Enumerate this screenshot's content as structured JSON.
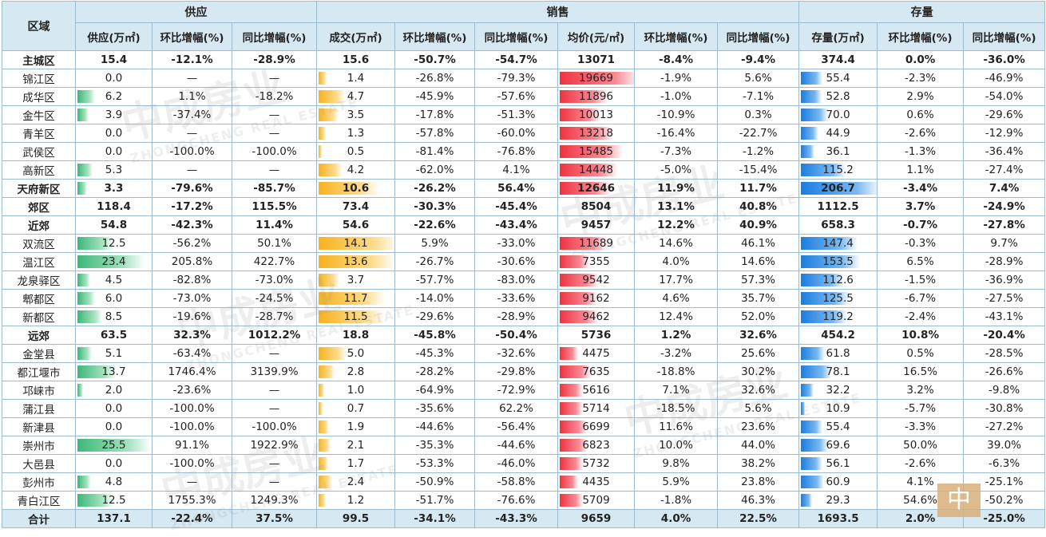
{
  "header": {
    "region": "区域",
    "groups": {
      "supply": "供应",
      "sales": "销售",
      "stock": "存量"
    },
    "columns": [
      "供应(万㎡)",
      "环比增幅(%)",
      "同比增幅(%)",
      "成交(万㎡)",
      "环比增幅(%)",
      "同比增幅(%)",
      "均价(元/㎡)",
      "环比增幅(%)",
      "同比增幅(%)",
      "存量(万㎡)",
      "环比增幅(%)",
      "同比增幅(%)"
    ]
  },
  "rows": [
    {
      "name": "主城区",
      "bold": true,
      "cells": [
        "15.4",
        "-12.1%",
        "-28.9%",
        "15.6",
        "-50.7%",
        "-54.7%",
        "13071",
        "-8.4%",
        "-9.4%",
        "374.4",
        "0.0%",
        "-36.0%"
      ]
    },
    {
      "name": "锦江区",
      "cells": [
        "0.0",
        "—",
        "—",
        "1.4",
        "-26.8%",
        "-79.3%",
        "19669",
        "-1.9%",
        "5.6%",
        "55.4",
        "-2.3%",
        "-46.9%"
      ],
      "bars": {
        "supply": 0.0,
        "deal": 1.4,
        "price": 19669,
        "stock": 55.4
      }
    },
    {
      "name": "成华区",
      "cells": [
        "6.2",
        "1.1%",
        "-18.2%",
        "4.7",
        "-45.9%",
        "-57.6%",
        "11896",
        "-1.0%",
        "-7.1%",
        "52.8",
        "2.9%",
        "-54.0%"
      ],
      "bars": {
        "supply": 6.2,
        "deal": 4.7,
        "price": 11896,
        "stock": 52.8
      }
    },
    {
      "name": "金牛区",
      "cells": [
        "3.9",
        "-37.4%",
        "—",
        "3.5",
        "-17.8%",
        "-51.3%",
        "10013",
        "-10.9%",
        "0.3%",
        "70.0",
        "0.6%",
        "-29.6%"
      ],
      "bars": {
        "supply": 3.9,
        "deal": 3.5,
        "price": 10013,
        "stock": 70.0
      }
    },
    {
      "name": "青羊区",
      "cells": [
        "0.0",
        "—",
        "—",
        "1.3",
        "-57.8%",
        "-60.0%",
        "13218",
        "-16.4%",
        "-22.7%",
        "44.9",
        "-2.6%",
        "-12.9%"
      ],
      "bars": {
        "supply": 0.0,
        "deal": 1.3,
        "price": 13218,
        "stock": 44.9
      }
    },
    {
      "name": "武侯区",
      "cells": [
        "0.0",
        "-100.0%",
        "-100.0%",
        "0.5",
        "-81.4%",
        "-76.8%",
        "15485",
        "-7.3%",
        "-1.2%",
        "36.1",
        "-1.3%",
        "-36.4%"
      ],
      "bars": {
        "supply": 0.0,
        "deal": 0.5,
        "price": 15485,
        "stock": 36.1
      }
    },
    {
      "name": "高新区",
      "cells": [
        "5.3",
        "—",
        "—",
        "4.2",
        "-62.0%",
        "4.1%",
        "14448",
        "-5.0%",
        "-15.4%",
        "115.2",
        "1.1%",
        "-27.4%"
      ],
      "bars": {
        "supply": 5.3,
        "deal": 4.2,
        "price": 14448,
        "stock": 115.2
      }
    },
    {
      "name": "天府新区",
      "bold": true,
      "cells": [
        "3.3",
        "-79.6%",
        "-85.7%",
        "10.6",
        "-26.2%",
        "56.4%",
        "12646",
        "11.9%",
        "11.7%",
        "206.7",
        "-3.4%",
        "7.4%"
      ],
      "bars": {
        "supply": 3.3,
        "deal": 10.6,
        "price": 12646,
        "stock": 206.7
      }
    },
    {
      "name": "郊区",
      "bold": true,
      "cells": [
        "118.4",
        "-17.2%",
        "115.5%",
        "73.4",
        "-30.3%",
        "-45.4%",
        "8504",
        "13.1%",
        "40.8%",
        "1112.5",
        "3.7%",
        "-24.9%"
      ]
    },
    {
      "name": "近郊",
      "bold": true,
      "cells": [
        "54.8",
        "-42.3%",
        "11.4%",
        "54.6",
        "-22.6%",
        "-43.4%",
        "9457",
        "12.2%",
        "40.9%",
        "658.3",
        "-0.7%",
        "-27.8%"
      ]
    },
    {
      "name": "双流区",
      "cells": [
        "12.5",
        "-56.2%",
        "50.1%",
        "14.1",
        "5.9%",
        "-33.0%",
        "11689",
        "14.6%",
        "46.1%",
        "147.4",
        "-0.3%",
        "9.7%"
      ],
      "bars": {
        "supply": 12.5,
        "deal": 14.1,
        "price": 11689,
        "stock": 147.4
      }
    },
    {
      "name": "温江区",
      "cells": [
        "23.4",
        "205.8%",
        "422.7%",
        "13.6",
        "-26.7%",
        "-30.6%",
        "7355",
        "4.0%",
        "14.6%",
        "153.5",
        "6.5%",
        "-28.9%"
      ],
      "bars": {
        "supply": 23.4,
        "deal": 13.6,
        "price": 7355,
        "stock": 153.5
      }
    },
    {
      "name": "龙泉驿区",
      "cells": [
        "4.5",
        "-82.8%",
        "-73.0%",
        "3.7",
        "-57.7%",
        "-83.0%",
        "9542",
        "17.7%",
        "57.3%",
        "112.6",
        "-1.5%",
        "-36.9%"
      ],
      "bars": {
        "supply": 4.5,
        "deal": 3.7,
        "price": 9542,
        "stock": 112.6
      }
    },
    {
      "name": "郫都区",
      "cells": [
        "6.0",
        "-73.0%",
        "-24.5%",
        "11.7",
        "-14.0%",
        "-33.6%",
        "9162",
        "4.6%",
        "35.7%",
        "125.5",
        "-6.7%",
        "-27.5%"
      ],
      "bars": {
        "supply": 6.0,
        "deal": 11.7,
        "price": 9162,
        "stock": 125.5
      }
    },
    {
      "name": "新都区",
      "cells": [
        "8.5",
        "-19.6%",
        "-28.7%",
        "11.5",
        "-29.6%",
        "-28.9%",
        "9462",
        "12.4%",
        "52.0%",
        "119.2",
        "-2.4%",
        "-43.1%"
      ],
      "bars": {
        "supply": 8.5,
        "deal": 11.5,
        "price": 9462,
        "stock": 119.2
      }
    },
    {
      "name": "远郊",
      "bold": true,
      "cells": [
        "63.5",
        "32.3%",
        "1012.2%",
        "18.8",
        "-45.8%",
        "-50.4%",
        "5736",
        "1.2%",
        "32.6%",
        "454.2",
        "10.8%",
        "-20.4%"
      ]
    },
    {
      "name": "金堂县",
      "cells": [
        "5.1",
        "-63.4%",
        "—",
        "5.0",
        "-45.3%",
        "-32.6%",
        "4475",
        "-3.2%",
        "25.6%",
        "61.8",
        "0.5%",
        "-28.5%"
      ],
      "bars": {
        "supply": 5.1,
        "deal": 5.0,
        "price": 4475,
        "stock": 61.8
      }
    },
    {
      "name": "都江堰市",
      "cells": [
        "13.7",
        "1746.4%",
        "3139.9%",
        "2.8",
        "-28.2%",
        "-29.8%",
        "7635",
        "-18.8%",
        "30.2%",
        "78.1",
        "16.5%",
        "-26.6%"
      ],
      "bars": {
        "supply": 13.7,
        "deal": 2.8,
        "price": 7635,
        "stock": 78.1
      }
    },
    {
      "name": "邛崃市",
      "cells": [
        "2.0",
        "-23.6%",
        "—",
        "1.0",
        "-64.9%",
        "-72.9%",
        "5616",
        "7.1%",
        "32.6%",
        "32.2",
        "3.2%",
        "-9.8%"
      ],
      "bars": {
        "supply": 2.0,
        "deal": 1.0,
        "price": 5616,
        "stock": 32.2
      }
    },
    {
      "name": "蒲江县",
      "cells": [
        "0.0",
        "-100.0%",
        "—",
        "0.7",
        "-35.6%",
        "62.2%",
        "5714",
        "-18.5%",
        "5.6%",
        "10.9",
        "-5.7%",
        "-30.8%"
      ],
      "bars": {
        "supply": 0.0,
        "deal": 0.7,
        "price": 5714,
        "stock": 10.9
      }
    },
    {
      "name": "新津县",
      "cells": [
        "0.0",
        "-100.0%",
        "-100.0%",
        "1.9",
        "-44.6%",
        "-56.4%",
        "6699",
        "11.6%",
        "23.6%",
        "55.4",
        "-3.3%",
        "-27.2%"
      ],
      "bars": {
        "supply": 0.0,
        "deal": 1.9,
        "price": 6699,
        "stock": 55.4
      }
    },
    {
      "name": "崇州市",
      "cells": [
        "25.5",
        "91.1%",
        "1922.9%",
        "2.1",
        "-35.3%",
        "-44.6%",
        "6823",
        "10.0%",
        "44.0%",
        "69.6",
        "50.0%",
        "39.0%"
      ],
      "bars": {
        "supply": 25.5,
        "deal": 2.1,
        "price": 6823,
        "stock": 69.6
      }
    },
    {
      "name": "大邑县",
      "cells": [
        "0.0",
        "-100.0%",
        "—",
        "1.7",
        "-53.3%",
        "-46.0%",
        "5732",
        "9.8%",
        "38.2%",
        "56.1",
        "-2.6%",
        "-6.3%"
      ],
      "bars": {
        "supply": 0.0,
        "deal": 1.7,
        "price": 5732,
        "stock": 56.1
      }
    },
    {
      "name": "彭州市",
      "cells": [
        "4.8",
        "—",
        "—",
        "2.4",
        "-50.9%",
        "-58.8%",
        "4435",
        "5.9%",
        "23.8%",
        "60.9",
        "4.1%",
        "-25.1%"
      ],
      "bars": {
        "supply": 4.8,
        "deal": 2.4,
        "price": 4435,
        "stock": 60.9
      }
    },
    {
      "name": "青白江区",
      "cells": [
        "12.5",
        "1755.3%",
        "1249.3%",
        "1.2",
        "-51.7%",
        "-76.6%",
        "5709",
        "-1.8%",
        "46.3%",
        "29.3",
        "54.6%",
        "-50.2%"
      ],
      "bars": {
        "supply": 12.5,
        "deal": 1.2,
        "price": 5709,
        "stock": 29.3
      }
    },
    {
      "name": "合计",
      "total": true,
      "cells": [
        "137.1",
        "-22.4%",
        "37.5%",
        "99.5",
        "-34.1%",
        "-43.3%",
        "9659",
        "4.0%",
        "22.5%",
        "1693.5",
        "2.0%",
        "-25.0%"
      ]
    }
  ],
  "bar_scale": {
    "supply": 25.5,
    "deal": 14.1,
    "price": 19669,
    "stock": 206.7
  },
  "bar_colors": {
    "supply": "#3cb878",
    "deal": "#f7b21f",
    "price": "#ee3340",
    "stock": "#1a7de0"
  },
  "chart_data": {
    "type": "table",
    "title": "",
    "units": {
      "supply": "万㎡",
      "deal": "万㎡",
      "price": "元/㎡",
      "stock": "万㎡"
    }
  },
  "watermark": {
    "text": "中成房业",
    "sub": "ZHONGCHENG REAL ESTATE"
  }
}
